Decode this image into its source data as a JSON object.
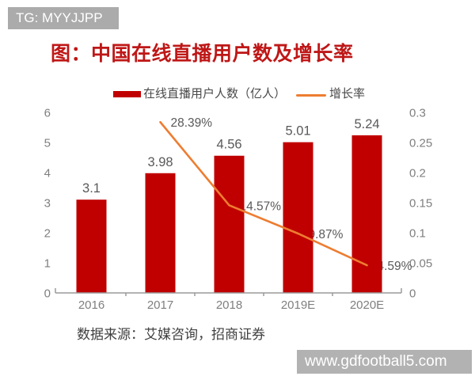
{
  "banner": {
    "text": "TG: MYYJJPP"
  },
  "title": "图：中国在线直播用户数及增长率",
  "legend": {
    "bar_label": "在线直播用户人数（亿人）",
    "line_label": "增长率"
  },
  "colors": {
    "bar": "#c00000",
    "line": "#ed7d31",
    "title": "#bf1717",
    "axis_text": "#7f7f7f",
    "data_label_text": "#595959",
    "axis_line": "#9a9a9a",
    "banner_bg": "#ababab",
    "watermark_bg": "#b2b2b2"
  },
  "chart_data": {
    "type": "bar+line combo",
    "categories": [
      "2016",
      "2017",
      "2018",
      "2019E",
      "2020E"
    ],
    "series": [
      {
        "name": "在线直播用户人数（亿人）",
        "type": "bar",
        "axis": "left",
        "values": [
          3.1,
          3.98,
          4.56,
          5.01,
          5.24
        ],
        "labels": [
          "3.1",
          "3.98",
          "4.56",
          "5.01",
          "5.24"
        ]
      },
      {
        "name": "增长率",
        "type": "line",
        "axis": "right",
        "values": [
          null,
          0.2839,
          0.1457,
          0.0987,
          0.0459
        ],
        "labels": [
          "",
          "28.39%",
          "14.57%",
          "9.87%",
          "4.59%"
        ]
      }
    ],
    "left_axis": {
      "min": 0,
      "max": 6,
      "ticks": [
        "0",
        "1",
        "2",
        "3",
        "4",
        "5",
        "6"
      ]
    },
    "right_axis": {
      "min": 0,
      "max": 0.3,
      "ticks": [
        "0",
        "0.05",
        "0.1",
        "0.15",
        "0.2",
        "0.25",
        "0.3"
      ]
    },
    "grid": false,
    "legend_position": "top"
  },
  "source": "数据来源：艾媒咨询，招商证券",
  "watermark": "www.gdfootball5.com"
}
